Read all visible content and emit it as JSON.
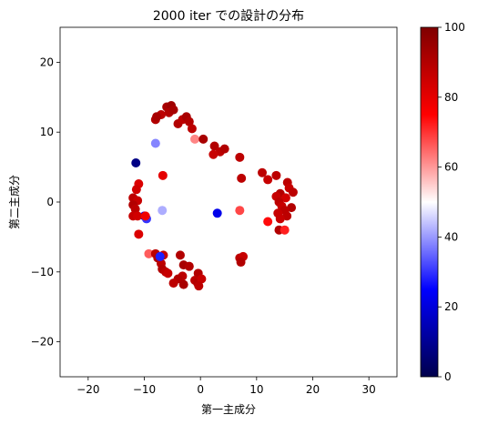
{
  "chart_data": {
    "type": "scatter",
    "title": "2000 iter での設計の分布",
    "xlabel": "第一主成分",
    "ylabel": "第二主成分",
    "xlim": [
      -25,
      35
    ],
    "ylim": [
      -25,
      25
    ],
    "xticks": [
      -20,
      -10,
      0,
      10,
      20,
      30
    ],
    "yticks": [
      -20,
      -10,
      0,
      10,
      20
    ],
    "colorbar": {
      "min": 0,
      "max": 100,
      "ticks": [
        0,
        20,
        40,
        60,
        80,
        100
      ],
      "colormap": "seismic"
    },
    "points": [
      {
        "x": -6.0,
        "y": 13.6,
        "c": 92
      },
      {
        "x": -5.2,
        "y": 13.8,
        "c": 94
      },
      {
        "x": -5.6,
        "y": 12.8,
        "c": 90
      },
      {
        "x": -4.8,
        "y": 13.2,
        "c": 92
      },
      {
        "x": -7.0,
        "y": 12.5,
        "c": 88
      },
      {
        "x": -8.0,
        "y": 11.8,
        "c": 90
      },
      {
        "x": -7.8,
        "y": 12.2,
        "c": 92
      },
      {
        "x": -4.0,
        "y": 11.2,
        "c": 90
      },
      {
        "x": -3.2,
        "y": 11.8,
        "c": 88
      },
      {
        "x": -2.5,
        "y": 12.2,
        "c": 92
      },
      {
        "x": -2.0,
        "y": 11.5,
        "c": 90
      },
      {
        "x": -1.5,
        "y": 10.5,
        "c": 88
      },
      {
        "x": -1.0,
        "y": 9.0,
        "c": 62
      },
      {
        "x": 0.5,
        "y": 9.0,
        "c": 92
      },
      {
        "x": 2.5,
        "y": 8.0,
        "c": 90
      },
      {
        "x": 3.5,
        "y": 7.2,
        "c": 88
      },
      {
        "x": 4.3,
        "y": 7.6,
        "c": 90
      },
      {
        "x": 2.3,
        "y": 6.8,
        "c": 86
      },
      {
        "x": 7.0,
        "y": 6.4,
        "c": 88
      },
      {
        "x": -8.0,
        "y": 8.4,
        "c": 38
      },
      {
        "x": -11.5,
        "y": 5.6,
        "c": 8
      },
      {
        "x": -6.7,
        "y": 3.8,
        "c": 80
      },
      {
        "x": 7.3,
        "y": 3.4,
        "c": 88
      },
      {
        "x": 11.0,
        "y": 4.2,
        "c": 88
      },
      {
        "x": 12.0,
        "y": 3.2,
        "c": 86
      },
      {
        "x": 13.5,
        "y": 3.8,
        "c": 88
      },
      {
        "x": 15.5,
        "y": 2.8,
        "c": 88
      },
      {
        "x": 15.8,
        "y": 2.0,
        "c": 86
      },
      {
        "x": 16.5,
        "y": 1.4,
        "c": 88
      },
      {
        "x": 14.2,
        "y": 1.2,
        "c": 90
      },
      {
        "x": 13.5,
        "y": 0.8,
        "c": 86
      },
      {
        "x": 15.2,
        "y": 0.6,
        "c": 84
      },
      {
        "x": 14.0,
        "y": 0.0,
        "c": 88
      },
      {
        "x": 14.5,
        "y": -0.6,
        "c": 86
      },
      {
        "x": 16.2,
        "y": -0.8,
        "c": 90
      },
      {
        "x": 15.0,
        "y": -1.2,
        "c": 88
      },
      {
        "x": 13.8,
        "y": -1.6,
        "c": 86
      },
      {
        "x": 15.4,
        "y": -2.0,
        "c": 88
      },
      {
        "x": 14.2,
        "y": -2.4,
        "c": 86
      },
      {
        "x": 12.0,
        "y": -2.8,
        "c": 74
      },
      {
        "x": 14.0,
        "y": -4.0,
        "c": 90
      },
      {
        "x": 15.0,
        "y": -4.0,
        "c": 72
      },
      {
        "x": 7.0,
        "y": -1.2,
        "c": 68
      },
      {
        "x": 3.0,
        "y": -1.6,
        "c": 22
      },
      {
        "x": -6.8,
        "y": -1.2,
        "c": 42
      },
      {
        "x": -10.0,
        "y": -2.0,
        "c": 22
      },
      {
        "x": -9.6,
        "y": -2.4,
        "c": 30
      },
      {
        "x": -11.0,
        "y": 2.6,
        "c": 82
      },
      {
        "x": -11.4,
        "y": 1.8,
        "c": 84
      },
      {
        "x": -12.0,
        "y": 0.6,
        "c": 88
      },
      {
        "x": -11.2,
        "y": 0.2,
        "c": 86
      },
      {
        "x": -12.0,
        "y": -0.4,
        "c": 90
      },
      {
        "x": -11.6,
        "y": -1.0,
        "c": 88
      },
      {
        "x": -12.0,
        "y": -2.0,
        "c": 86
      },
      {
        "x": -11.2,
        "y": -2.0,
        "c": 84
      },
      {
        "x": -9.8,
        "y": -2.0,
        "c": 78
      },
      {
        "x": -11.0,
        "y": -4.6,
        "c": 82
      },
      {
        "x": -9.2,
        "y": -7.4,
        "c": 66
      },
      {
        "x": -8.0,
        "y": -7.4,
        "c": 88
      },
      {
        "x": -7.6,
        "y": -8.0,
        "c": 90
      },
      {
        "x": -6.6,
        "y": -7.6,
        "c": 86
      },
      {
        "x": -7.0,
        "y": -8.8,
        "c": 88
      },
      {
        "x": -6.8,
        "y": -9.6,
        "c": 90
      },
      {
        "x": -6.2,
        "y": -10.0,
        "c": 88
      },
      {
        "x": -5.8,
        "y": -10.2,
        "c": 86
      },
      {
        "x": -7.2,
        "y": -7.8,
        "c": 28
      },
      {
        "x": -3.6,
        "y": -7.6,
        "c": 90
      },
      {
        "x": -3.0,
        "y": -9.0,
        "c": 92
      },
      {
        "x": -2.0,
        "y": -9.2,
        "c": 90
      },
      {
        "x": -3.2,
        "y": -10.6,
        "c": 88
      },
      {
        "x": -4.0,
        "y": -11.0,
        "c": 90
      },
      {
        "x": -4.8,
        "y": -11.6,
        "c": 88
      },
      {
        "x": -3.0,
        "y": -11.8,
        "c": 92
      },
      {
        "x": -0.4,
        "y": -10.2,
        "c": 90
      },
      {
        "x": -1.0,
        "y": -11.2,
        "c": 88
      },
      {
        "x": -0.5,
        "y": -11.6,
        "c": 90
      },
      {
        "x": 0.2,
        "y": -11.0,
        "c": 86
      },
      {
        "x": -0.3,
        "y": -12.0,
        "c": 88
      },
      {
        "x": 7.0,
        "y": -8.0,
        "c": 88
      },
      {
        "x": 7.6,
        "y": -7.8,
        "c": 86
      },
      {
        "x": 7.2,
        "y": -8.6,
        "c": 90
      }
    ]
  }
}
